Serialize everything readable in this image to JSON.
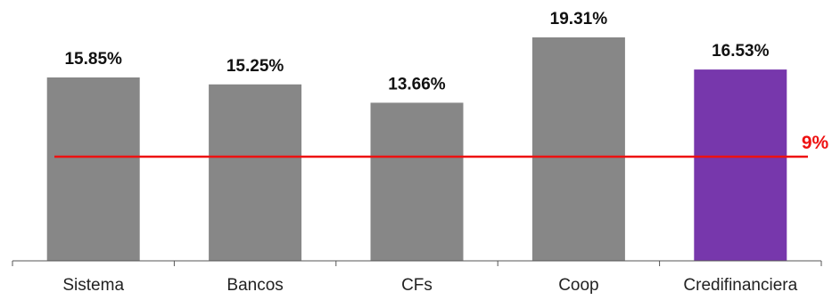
{
  "chart_data": {
    "type": "bar",
    "categories": [
      "Sistema",
      "Bancos",
      "CFs",
      "Coop",
      "Credifinanciera"
    ],
    "values": [
      15.85,
      15.25,
      13.66,
      19.31,
      16.53
    ],
    "value_labels": [
      "15.85%",
      "15.25%",
      "13.66%",
      "19.31%",
      "16.53%"
    ],
    "ylim": [
      0,
      20
    ],
    "grid": false,
    "legend": "none",
    "colors": {
      "default_bar": "#878787",
      "highlight_bar": "#7737ac",
      "highlight_category": "Credifinanciera",
      "reference_line": "#ee1111",
      "axis": "#555555"
    },
    "reference_line": {
      "value": 9,
      "label": "9%"
    }
  }
}
